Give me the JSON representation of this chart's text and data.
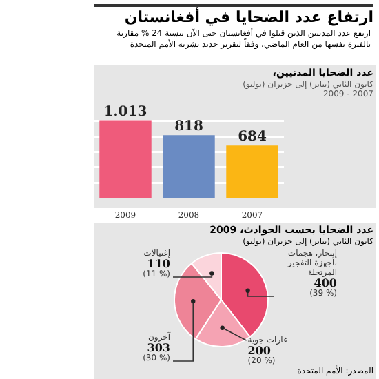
{
  "chart_data": [
    {
      "type": "bar",
      "title": "ارتفاع عدد الضحايا في أفغانستان",
      "subtitle": "ارتفع عدد المدنيين الذين قتلوا في أفغانستان حتى الآن بنسبة 24 % مقارنة بالفترة نفسها من العام الماضي، وفقاً لتقرير جديد نشرته الأمم المتحدة",
      "annotations": [
        "عدد الضحايا المدنيين،",
        "كانون الثاني (يناير) إلى حزيران (يوليو)",
        "2007 - 2009"
      ],
      "categories": [
        "2009",
        "2008",
        "2007"
      ],
      "values": [
        1013,
        818,
        684
      ],
      "colors": [
        "#ef5b7b",
        "#6a8bc3",
        "#fbb614"
      ],
      "value_labels": [
        "1.013",
        "818",
        "684"
      ],
      "yticks": [
        {
          "value": 200,
          "label": null
        },
        {
          "value": 400,
          "label": null
        },
        {
          "value": 600,
          "label": null
        },
        {
          "value": 800,
          "label": null
        },
        {
          "value": 1000,
          "label": null
        }
      ],
      "grid": "y",
      "tick_labels": "x"
    },
    {
      "type": "pie",
      "title": "عدد الضحايا بحسب الحوادث، 2009",
      "subtitle": "كانون الثاني (يناير) إلى حزيران (يوليو)",
      "categories": [
        "إنتحار، هجمات بأجهزة التفجير المرتجلة",
        "غارات جوية",
        "آخرون",
        "إغتيالات"
      ],
      "values": [
        400,
        200,
        303,
        110
      ],
      "colors": [
        "#e8496e",
        "#f5a3b3",
        "#ee8497",
        "#fbd5dc"
      ],
      "value_labels": [
        "400",
        "200",
        "303",
        "110"
      ],
      "annotations": [
        "(% 39)",
        "(% 20)",
        "(% 30)",
        "(% 11)",
        "المصدر: الأمم المتحدة"
      ]
    }
  ]
}
